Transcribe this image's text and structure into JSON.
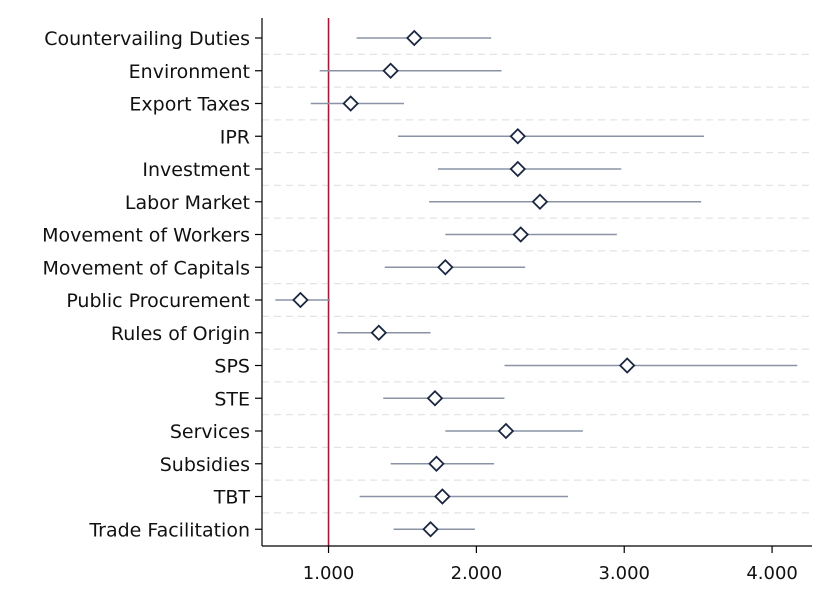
{
  "chart_data": {
    "type": "scatter",
    "orientation": "horizontal",
    "title": "",
    "xlabel": "",
    "ylabel": "",
    "categories": [
      "Countervailing Duties",
      "Environment",
      "Export Taxes",
      "IPR",
      "Investment",
      "Labor Market",
      "Movement of Workers",
      "Movement of Capitals",
      "Public Procurement",
      "Rules of Origin",
      "SPS",
      "STE",
      "Services",
      "Subsidies",
      "TBT",
      "Trade Facilitation"
    ],
    "series": [
      {
        "estimate": [
          1.58,
          1.42,
          1.15,
          2.28,
          2.28,
          2.43,
          2.3,
          1.79,
          0.81,
          1.34,
          3.02,
          1.72,
          2.2,
          1.73,
          1.77,
          1.69
        ],
        "ci_low": [
          1.19,
          0.94,
          0.88,
          1.47,
          1.74,
          1.68,
          1.79,
          1.38,
          0.64,
          1.06,
          2.19,
          1.37,
          1.79,
          1.42,
          1.21,
          1.44
        ],
        "ci_high": [
          2.1,
          2.17,
          1.51,
          3.54,
          2.98,
          3.52,
          2.95,
          2.33,
          1.01,
          1.69,
          4.17,
          2.19,
          2.72,
          2.12,
          2.62,
          1.99
        ]
      }
    ],
    "xlim": [
      0.55,
      4.27
    ],
    "xticks": [
      "1.000",
      "2.000",
      "3.000",
      "4.000"
    ],
    "xtick_values": [
      1,
      2,
      3,
      4
    ],
    "reference_line": 1,
    "grid": "horizontal dashed",
    "colors": {
      "reference_line": "#a8163a",
      "marker_edge": "#1a2640",
      "ci_line": "#8a93a6",
      "grid": "#e4e4e4",
      "axis": "#000000"
    }
  }
}
